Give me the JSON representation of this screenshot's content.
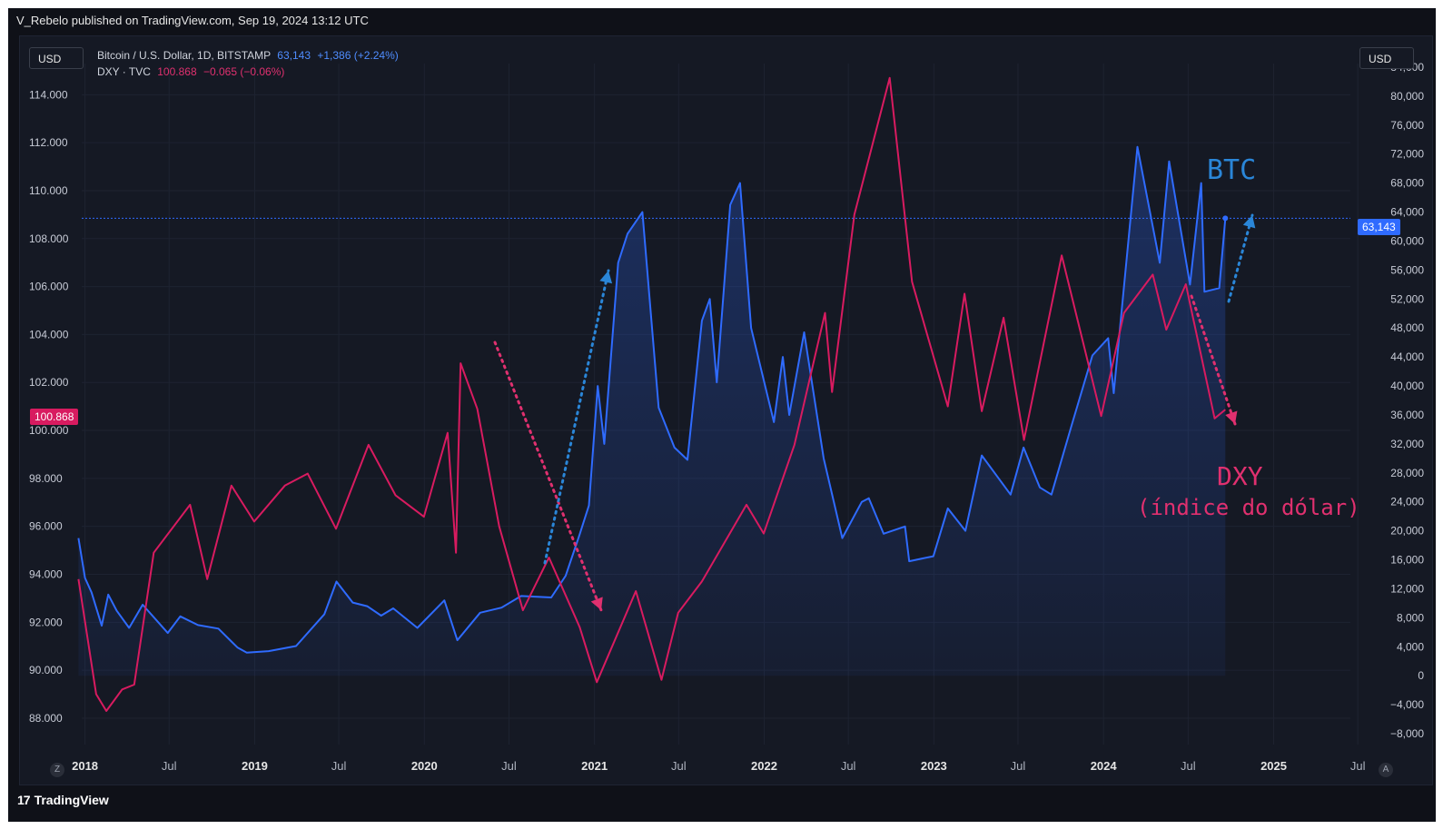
{
  "header": {
    "published_by": "V_Rebelo published on TradingView.com, Sep 19, 2024 13:12 UTC"
  },
  "footer": {
    "brand_mark": "17",
    "brand_name": "TradingView"
  },
  "controls": {
    "left_scale_label": "USD",
    "right_scale_label": "USD",
    "left_corner": "Z",
    "right_corner": "A"
  },
  "legend": {
    "btc": {
      "title": "Bitcoin / U.S. Dollar, 1D, BITSTAMP",
      "value": "63,143",
      "change": "+1,386 (+2.24%)"
    },
    "dxy": {
      "title": "DXY · TVC",
      "value": "100.868",
      "change": "−0.065 (−0.06%)"
    }
  },
  "price_tags": {
    "dxy_last": "100.868",
    "btc_last": "63,143"
  },
  "annotations": {
    "btc_label": "BTC",
    "dxy_label_1": "DXY",
    "dxy_label_2": "(índice do dólar)"
  },
  "colors": {
    "btc": "#2f6bff",
    "dxy": "#d81b60",
    "btc_arrow": "#2a86d8",
    "dxy_arrow": "#e0306f",
    "background": "#151924",
    "grid": "#1e2331"
  },
  "chart_data": {
    "type": "line",
    "x_axis": {
      "type": "date",
      "range": [
        "2017-12-25",
        "2025-06-15"
      ],
      "tick_labels": [
        "2018",
        "Jul",
        "2019",
        "Jul",
        "2020",
        "Jul",
        "2021",
        "Jul",
        "2022",
        "Jul",
        "2023",
        "Jul",
        "2024",
        "Jul",
        "2025",
        "Jul"
      ]
    },
    "left_axis": {
      "series": "DXY",
      "range": [
        86.9,
        115.3
      ],
      "ticks": [
        "88.000",
        "90.000",
        "92.000",
        "94.000",
        "96.000",
        "98.000",
        "100.000",
        "102.000",
        "104.000",
        "106.000",
        "108.000",
        "110.000",
        "112.000",
        "114.000"
      ]
    },
    "right_axis": {
      "series": "BTCUSD",
      "range": [
        -9500,
        84500
      ],
      "ticks": [
        "−8,000",
        "−4,000",
        "0",
        "4,000",
        "8,000",
        "12,000",
        "16,000",
        "20,000",
        "24,000",
        "28,000",
        "32,000",
        "36,000",
        "40,000",
        "44,000",
        "48,000",
        "52,000",
        "56,000",
        "60,000",
        "64,000",
        "68,000",
        "72,000",
        "76,000",
        "80,000",
        "84,000"
      ]
    },
    "grid": true,
    "series": [
      {
        "name": "Bitcoin / U.S. Dollar, 1D, BITSTAMP",
        "axis": "right",
        "style": "line-with-area",
        "points": [
          [
            "2017-12-18",
            19000
          ],
          [
            "2018-01-01",
            13500
          ],
          [
            "2018-01-15",
            11500
          ],
          [
            "2018-02-06",
            6900
          ],
          [
            "2018-02-20",
            11200
          ],
          [
            "2018-03-10",
            9000
          ],
          [
            "2018-04-06",
            6600
          ],
          [
            "2018-05-05",
            9800
          ],
          [
            "2018-06-28",
            5900
          ],
          [
            "2018-07-25",
            8200
          ],
          [
            "2018-09-01",
            7000
          ],
          [
            "2018-10-15",
            6500
          ],
          [
            "2018-11-25",
            3900
          ],
          [
            "2018-12-15",
            3200
          ],
          [
            "2019-01-31",
            3400
          ],
          [
            "2019-03-31",
            4100
          ],
          [
            "2019-05-31",
            8500
          ],
          [
            "2019-06-26",
            13000
          ],
          [
            "2019-07-31",
            10100
          ],
          [
            "2019-08-31",
            9600
          ],
          [
            "2019-09-30",
            8300
          ],
          [
            "2019-10-26",
            9300
          ],
          [
            "2019-12-17",
            6600
          ],
          [
            "2020-02-13",
            10400
          ],
          [
            "2020-03-12",
            4900
          ],
          [
            "2020-04-30",
            8700
          ],
          [
            "2020-06-15",
            9400
          ],
          [
            "2020-07-27",
            11000
          ],
          [
            "2020-09-30",
            10800
          ],
          [
            "2020-10-31",
            13800
          ],
          [
            "2020-11-30",
            19500
          ],
          [
            "2020-12-20",
            23500
          ],
          [
            "2021-01-08",
            40000
          ],
          [
            "2021-01-22",
            32000
          ],
          [
            "2021-02-21",
            57000
          ],
          [
            "2021-03-13",
            61000
          ],
          [
            "2021-04-14",
            64000
          ],
          [
            "2021-05-19",
            37000
          ],
          [
            "2021-06-22",
            31500
          ],
          [
            "2021-07-20",
            29800
          ],
          [
            "2021-08-20",
            49000
          ],
          [
            "2021-09-06",
            52000
          ],
          [
            "2021-09-21",
            40500
          ],
          [
            "2021-10-20",
            65000
          ],
          [
            "2021-11-10",
            68000
          ],
          [
            "2021-12-04",
            48000
          ],
          [
            "2022-01-22",
            35000
          ],
          [
            "2022-02-10",
            44000
          ],
          [
            "2022-02-24",
            36000
          ],
          [
            "2022-03-28",
            47400
          ],
          [
            "2022-05-09",
            30000
          ],
          [
            "2022-06-18",
            19000
          ],
          [
            "2022-07-30",
            24000
          ],
          [
            "2022-08-14",
            24500
          ],
          [
            "2022-09-15",
            19600
          ],
          [
            "2022-10-31",
            20600
          ],
          [
            "2022-11-09",
            15800
          ],
          [
            "2022-12-31",
            16500
          ],
          [
            "2023-01-31",
            23100
          ],
          [
            "2023-03-10",
            20000
          ],
          [
            "2023-04-14",
            30400
          ],
          [
            "2023-06-15",
            25000
          ],
          [
            "2023-07-13",
            31500
          ],
          [
            "2023-08-17",
            26000
          ],
          [
            "2023-09-11",
            25000
          ],
          [
            "2023-10-24",
            34500
          ],
          [
            "2023-12-08",
            44200
          ],
          [
            "2024-01-11",
            46600
          ],
          [
            "2024-01-23",
            39000
          ],
          [
            "2024-03-14",
            73000
          ],
          [
            "2024-05-01",
            57000
          ],
          [
            "2024-05-21",
            71000
          ],
          [
            "2024-07-05",
            54000
          ],
          [
            "2024-07-29",
            68000
          ],
          [
            "2024-08-05",
            53000
          ],
          [
            "2024-09-06",
            53500
          ],
          [
            "2024-09-19",
            63143
          ]
        ]
      },
      {
        "name": "DXY · TVC",
        "axis": "left",
        "style": "line",
        "points": [
          [
            "2017-12-18",
            93.8
          ],
          [
            "2018-01-25",
            89.0
          ],
          [
            "2018-02-16",
            88.3
          ],
          [
            "2018-03-22",
            89.2
          ],
          [
            "2018-04-17",
            89.4
          ],
          [
            "2018-05-29",
            94.9
          ],
          [
            "2018-08-15",
            96.9
          ],
          [
            "2018-09-21",
            93.8
          ],
          [
            "2018-11-12",
            97.7
          ],
          [
            "2018-12-31",
            96.2
          ],
          [
            "2019-03-07",
            97.7
          ],
          [
            "2019-04-25",
            98.2
          ],
          [
            "2019-06-25",
            95.9
          ],
          [
            "2019-09-03",
            99.4
          ],
          [
            "2019-10-31",
            97.3
          ],
          [
            "2019-12-31",
            96.4
          ],
          [
            "2020-02-20",
            99.9
          ],
          [
            "2020-03-09",
            94.9
          ],
          [
            "2020-03-19",
            102.8
          ],
          [
            "2020-04-24",
            100.9
          ],
          [
            "2020-06-10",
            96.0
          ],
          [
            "2020-07-31",
            92.5
          ],
          [
            "2020-09-25",
            94.7
          ],
          [
            "2020-11-30",
            91.8
          ],
          [
            "2021-01-06",
            89.5
          ],
          [
            "2021-03-31",
            93.3
          ],
          [
            "2021-05-25",
            89.6
          ],
          [
            "2021-06-30",
            92.4
          ],
          [
            "2021-08-20",
            93.7
          ],
          [
            "2021-11-24",
            96.9
          ],
          [
            "2021-12-31",
            95.7
          ],
          [
            "2022-03-07",
            99.4
          ],
          [
            "2022-05-12",
            104.9
          ],
          [
            "2022-05-27",
            101.6
          ],
          [
            "2022-07-14",
            109.0
          ],
          [
            "2022-09-28",
            114.7
          ],
          [
            "2022-11-15",
            106.2
          ],
          [
            "2023-01-31",
            101.0
          ],
          [
            "2023-03-08",
            105.7
          ],
          [
            "2023-04-14",
            100.8
          ],
          [
            "2023-05-31",
            104.7
          ],
          [
            "2023-07-14",
            99.6
          ],
          [
            "2023-10-03",
            107.3
          ],
          [
            "2023-12-27",
            100.6
          ],
          [
            "2024-02-14",
            104.9
          ],
          [
            "2024-04-16",
            106.5
          ],
          [
            "2024-05-15",
            104.2
          ],
          [
            "2024-06-26",
            106.1
          ],
          [
            "2024-08-27",
            100.5
          ],
          [
            "2024-09-19",
            100.868
          ]
        ]
      }
    ]
  }
}
